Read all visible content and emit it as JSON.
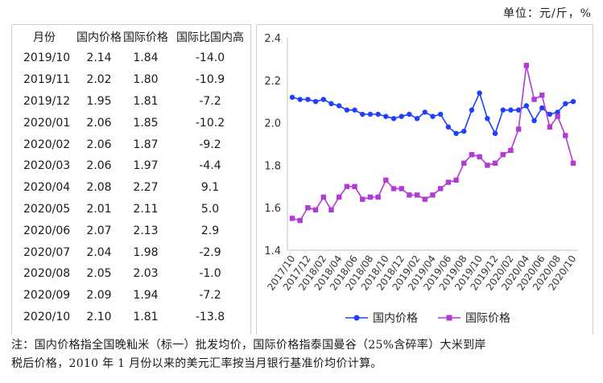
{
  "unit": "单位：元/斤，%",
  "table": {
    "headers": [
      "月份",
      "国内价格",
      "国际价格",
      "国际比国内高"
    ],
    "rows": [
      [
        "2019/10",
        "2.14",
        "1.84",
        "-14.0"
      ],
      [
        "2019/11",
        "2.02",
        "1.80",
        "-10.9"
      ],
      [
        "2019/12",
        "1.95",
        "1.81",
        "-7.2"
      ],
      [
        "2020/01",
        "2.06",
        "1.85",
        "-10.2"
      ],
      [
        "2020/02",
        "2.06",
        "1.87",
        "-9.2"
      ],
      [
        "2020/03",
        "2.06",
        "1.97",
        "-4.4"
      ],
      [
        "2020/04",
        "2.08",
        "2.27",
        "9.1"
      ],
      [
        "2020/05",
        "2.01",
        "2.11",
        "5.0"
      ],
      [
        "2020/06",
        "2.07",
        "2.13",
        "2.9"
      ],
      [
        "2020/07",
        "2.04",
        "1.98",
        "-2.9"
      ],
      [
        "2020/08",
        "2.05",
        "2.03",
        "-1.0"
      ],
      [
        "2020/09",
        "2.09",
        "1.94",
        "-7.2"
      ],
      [
        "2020/10",
        "2.10",
        "1.81",
        "-13.8"
      ]
    ]
  },
  "chart_data": {
    "type": "line",
    "title": "",
    "xlabel": "",
    "ylabel": "",
    "ylim": [
      1.4,
      2.4
    ],
    "yticks": [
      "1.4",
      "1.6",
      "1.8",
      "2.0",
      "2.2",
      "2.4"
    ],
    "grid": false,
    "legend_position": "bottom",
    "x": [
      "2017/10",
      "2017/11",
      "2017/12",
      "2018/01",
      "2018/02",
      "2018/03",
      "2018/04",
      "2018/05",
      "2018/06",
      "2018/07",
      "2018/08",
      "2018/09",
      "2018/10",
      "2018/11",
      "2018/12",
      "2019/01",
      "2019/02",
      "2019/03",
      "2019/04",
      "2019/05",
      "2019/06",
      "2019/07",
      "2019/08",
      "2019/09",
      "2019/10",
      "2019/11",
      "2019/12",
      "2020/01",
      "2020/02",
      "2020/03",
      "2020/04",
      "2020/05",
      "2020/06",
      "2020/07",
      "2020/08",
      "2020/09",
      "2020/10"
    ],
    "x_tick_labels": [
      "2017/10",
      "2017/12",
      "2018/02",
      "2018/04",
      "2018/06",
      "2018/08",
      "2018/10",
      "2018/12",
      "2019/02",
      "2019/04",
      "2019/06",
      "2019/08",
      "2019/10",
      "2019/12",
      "2020/02",
      "2020/04",
      "2020/06",
      "2020/08",
      "2020/10"
    ],
    "series": [
      {
        "name": "国内价格",
        "color": "#1f3fff",
        "marker": "circle",
        "values": [
          2.12,
          2.11,
          2.11,
          2.1,
          2.11,
          2.09,
          2.08,
          2.06,
          2.06,
          2.04,
          2.04,
          2.04,
          2.03,
          2.02,
          2.03,
          2.04,
          2.02,
          2.05,
          2.03,
          2.04,
          1.98,
          1.95,
          1.96,
          2.06,
          2.14,
          2.02,
          1.95,
          2.06,
          2.06,
          2.06,
          2.08,
          2.01,
          2.07,
          2.04,
          2.05,
          2.09,
          2.1
        ]
      },
      {
        "name": "国际价格",
        "color": "#b23bd6",
        "marker": "square",
        "values": [
          1.55,
          1.54,
          1.6,
          1.59,
          1.65,
          1.59,
          1.65,
          1.7,
          1.7,
          1.64,
          1.65,
          1.65,
          1.73,
          1.69,
          1.69,
          1.66,
          1.66,
          1.64,
          1.66,
          1.69,
          1.72,
          1.73,
          1.81,
          1.85,
          1.84,
          1.8,
          1.81,
          1.85,
          1.87,
          1.97,
          2.27,
          2.11,
          2.13,
          1.98,
          2.03,
          1.94,
          1.81
        ]
      }
    ]
  },
  "note": {
    "line1": "注：国内价格指全国晚籼米（标一）批发均价，国际价格指泰国曼谷（25%含碎率）大米到岸",
    "line2": "税后价格，2010 年 1 月份以来的美元汇率按当月银行基准价均价计算。"
  }
}
